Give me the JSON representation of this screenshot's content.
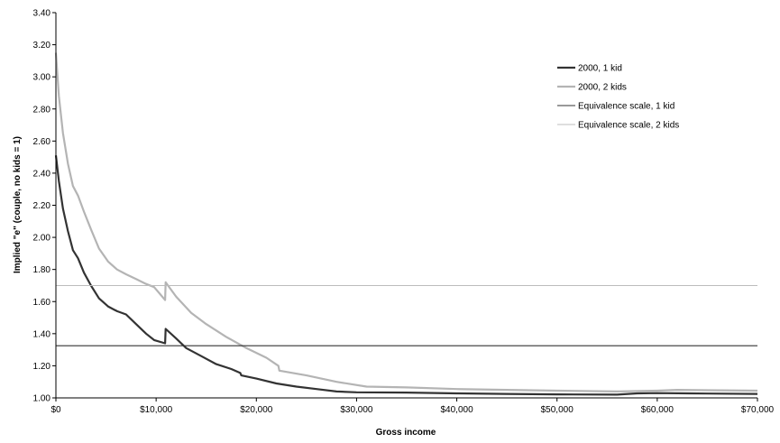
{
  "chart_data": {
    "type": "line",
    "xlabel": "Gross income",
    "ylabel": "Implied \"e\" (couple, no kids = 1)",
    "xlim": [
      0,
      70000
    ],
    "ylim": [
      1.0,
      3.4
    ],
    "x_ticks": [
      0,
      10000,
      20000,
      30000,
      40000,
      50000,
      60000,
      70000
    ],
    "x_tick_labels": [
      "$0",
      "$10,000",
      "$20,000",
      "$30,000",
      "$40,000",
      "$50,000",
      "$60,000",
      "$70,000"
    ],
    "y_ticks": [
      1.0,
      1.2,
      1.4,
      1.6,
      1.8,
      2.0,
      2.2,
      2.4,
      2.6,
      2.8,
      3.0,
      3.2,
      3.4
    ],
    "y_tick_labels": [
      "1.00",
      "1.20",
      "1.40",
      "1.60",
      "1.80",
      "2.00",
      "2.20",
      "2.40",
      "2.60",
      "2.80",
      "3.00",
      "3.20",
      "3.40"
    ],
    "grid": false,
    "legend_position": "top-right",
    "series": [
      {
        "name": "2000, 1 kid",
        "color": "#333333",
        "style": "thick",
        "x": [
          0,
          300,
          700,
          1200,
          1700,
          2200,
          2800,
          3500,
          4300,
          5200,
          6100,
          7000,
          8000,
          9000,
          9800,
          10900,
          10950,
          12000,
          13000,
          14500,
          16000,
          17500,
          18400,
          18500,
          20000,
          22000,
          24000,
          26000,
          28000,
          30000,
          35000,
          40000,
          45000,
          50000,
          56000,
          58000,
          60000,
          65000,
          70000
        ],
        "y": [
          2.51,
          2.35,
          2.18,
          2.04,
          1.92,
          1.87,
          1.78,
          1.7,
          1.62,
          1.57,
          1.54,
          1.52,
          1.46,
          1.4,
          1.36,
          1.34,
          1.43,
          1.37,
          1.31,
          1.26,
          1.21,
          1.18,
          1.155,
          1.14,
          1.12,
          1.09,
          1.07,
          1.055,
          1.04,
          1.035,
          1.033,
          1.028,
          1.025,
          1.022,
          1.02,
          1.028,
          1.03,
          1.027,
          1.025
        ]
      },
      {
        "name": "2000, 2 kids",
        "color": "#b4b4b4",
        "style": "thick",
        "x": [
          0,
          300,
          700,
          1200,
          1700,
          2200,
          2800,
          3500,
          4300,
          5200,
          6100,
          7000,
          8000,
          9000,
          9800,
          10900,
          10950,
          12000,
          13500,
          15000,
          17000,
          19000,
          21000,
          22200,
          22300,
          25000,
          28000,
          31000,
          35000,
          40000,
          45000,
          50000,
          56000,
          60000,
          62000,
          65000,
          70000
        ],
        "y": [
          3.15,
          2.88,
          2.65,
          2.46,
          2.32,
          2.26,
          2.16,
          2.05,
          1.93,
          1.85,
          1.8,
          1.77,
          1.74,
          1.71,
          1.69,
          1.61,
          1.72,
          1.63,
          1.53,
          1.46,
          1.38,
          1.31,
          1.25,
          1.2,
          1.17,
          1.14,
          1.1,
          1.07,
          1.065,
          1.055,
          1.05,
          1.045,
          1.04,
          1.045,
          1.05,
          1.048,
          1.045
        ]
      },
      {
        "name": "Equivalence scale, 1 kid",
        "color": "#333333",
        "style": "thin",
        "x": [
          0,
          70000
        ],
        "y": [
          1.325,
          1.325
        ]
      },
      {
        "name": "Equivalence scale, 2 kids",
        "color": "#bcbcbc",
        "style": "thin",
        "x": [
          0,
          70000
        ],
        "y": [
          1.7,
          1.7
        ]
      }
    ]
  }
}
